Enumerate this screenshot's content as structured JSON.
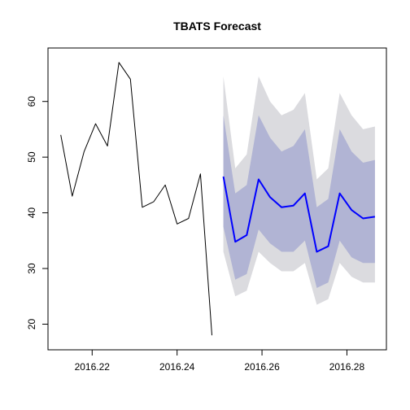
{
  "chart_data": {
    "type": "line",
    "title": "TBATS Forecast",
    "xlabel": "",
    "ylabel": "",
    "xlim": [
      2016.2096,
      2016.2893
    ],
    "ylim": [
      15.4,
      69.6
    ],
    "x_ticks": [
      2016.22,
      2016.24,
      2016.26,
      2016.28
    ],
    "x_tick_labels": [
      "2016.22",
      "2016.24",
      "2016.26",
      "2016.28"
    ],
    "y_ticks": [
      20,
      30,
      40,
      50,
      60
    ],
    "y_tick_labels": [
      "20",
      "30",
      "40",
      "50",
      "60"
    ],
    "grid": false,
    "legend": "none",
    "series": [
      {
        "kind": "observed",
        "color": "#000000",
        "x": [
          2016.2126,
          2016.2153,
          2016.2181,
          2016.2208,
          2016.2236,
          2016.2263,
          2016.229,
          2016.2318,
          2016.2345,
          2016.2372,
          2016.24,
          2016.2427,
          2016.2455,
          2016.2482
        ],
        "values": [
          54,
          43,
          51,
          56,
          52,
          67,
          64,
          41,
          42,
          45,
          38,
          39,
          47,
          18
        ]
      },
      {
        "kind": "forecast_mean",
        "color": "#0000ff",
        "x": [
          2016.2509,
          2016.2537,
          2016.2564,
          2016.2592,
          2016.2619,
          2016.2646,
          2016.2674,
          2016.2701,
          2016.2729,
          2016.2756,
          2016.2783,
          2016.2811,
          2016.2838,
          2016.2866
        ],
        "values": [
          46.5,
          34.8,
          36.0,
          46.0,
          42.8,
          41.0,
          41.3,
          43.5,
          33.0,
          34.0,
          43.5,
          40.5,
          39.0,
          39.3
        ]
      },
      {
        "kind": "interval_95",
        "color": "#dbdbdf",
        "x": [
          2016.2509,
          2016.2537,
          2016.2564,
          2016.2592,
          2016.2619,
          2016.2646,
          2016.2674,
          2016.2701,
          2016.2729,
          2016.2756,
          2016.2783,
          2016.2811,
          2016.2838,
          2016.2866
        ],
        "lower": [
          33.0,
          25.0,
          26.0,
          33.0,
          31.0,
          29.5,
          29.5,
          31.0,
          23.5,
          24.5,
          31.0,
          28.5,
          27.5,
          27.5
        ],
        "upper": [
          64.5,
          48.0,
          50.5,
          64.5,
          60.0,
          57.5,
          58.5,
          61.5,
          46.0,
          48.0,
          61.5,
          57.5,
          55.0,
          55.5
        ]
      },
      {
        "kind": "interval_80",
        "color": "#b1b4d4",
        "x": [
          2016.2509,
          2016.2537,
          2016.2564,
          2016.2592,
          2016.2619,
          2016.2646,
          2016.2674,
          2016.2701,
          2016.2729,
          2016.2756,
          2016.2783,
          2016.2811,
          2016.2838,
          2016.2866
        ],
        "lower": [
          37.5,
          28.0,
          29.0,
          37.0,
          34.5,
          33.0,
          33.0,
          35.0,
          26.5,
          27.5,
          35.0,
          32.0,
          31.0,
          31.0
        ],
        "upper": [
          57.5,
          43.5,
          45.0,
          57.5,
          53.5,
          51.0,
          52.0,
          55.0,
          41.0,
          42.5,
          55.0,
          51.0,
          49.0,
          49.5
        ]
      }
    ]
  }
}
